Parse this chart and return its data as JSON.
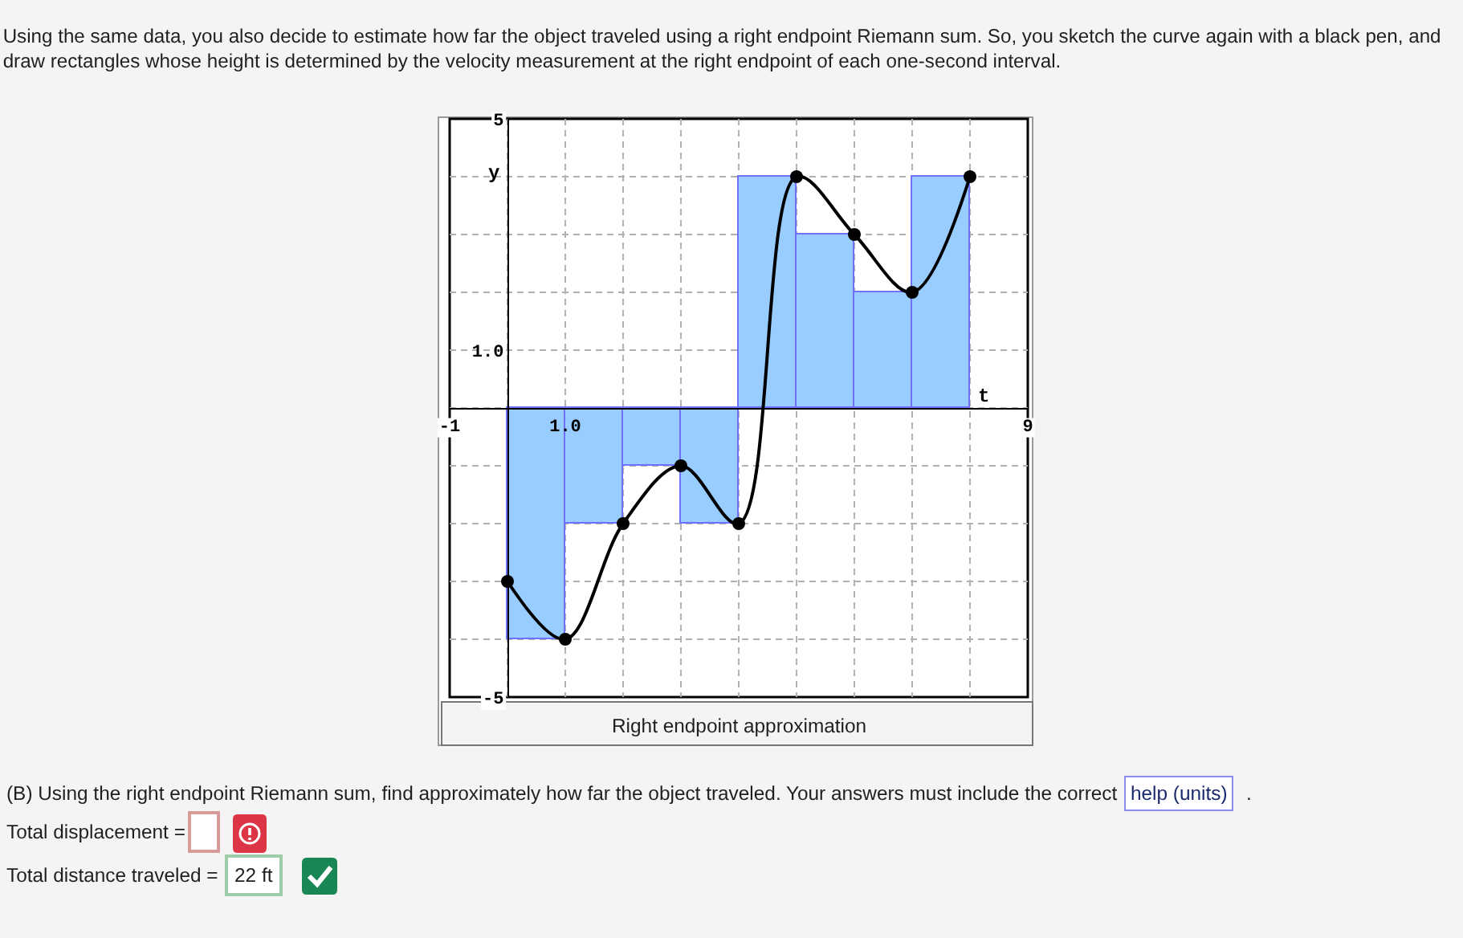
{
  "chart_data": {
    "type": "line",
    "title": "Using the same data, you also decide to estimate how far the object traveled using a right endpoint Riemann sum. So, you sketch the curve again with a black pen, and draw rectangles whose height is determined by the velocity measurement at the right endpoint of each one-second interval.",
    "xlabel": "t",
    "ylabel": "y",
    "xlim": [
      -1,
      9
    ],
    "ylim": [
      -5,
      5
    ],
    "xticks": [
      -1,
      {
        "value": 0,
        "label": null
      },
      {
        "value": 1,
        "label": "1.0"
      },
      {
        "value": 2,
        "label": null
      },
      {
        "value": 3,
        "label": null
      },
      {
        "value": 4,
        "label": null
      },
      {
        "value": 5,
        "label": null
      },
      {
        "value": 6,
        "label": null
      },
      {
        "value": 7,
        "label": null
      },
      {
        "value": 8,
        "label": null
      },
      9
    ],
    "yticks": [
      -5,
      {
        "value": -4,
        "label": null
      },
      {
        "value": -3,
        "label": null
      },
      {
        "value": -2,
        "label": null
      },
      {
        "value": -1,
        "label": null
      },
      {
        "value": 0,
        "label": null
      },
      {
        "value": 1,
        "label": "1.0"
      },
      {
        "value": 2,
        "label": null
      },
      {
        "value": 3,
        "label": null
      },
      {
        "value": 4,
        "label": null
      },
      5
    ],
    "grid": true,
    "marker": "circle",
    "series": [
      {
        "type": "bar",
        "color": "#99ccff",
        "x": [
          0.5,
          1.5,
          2.5,
          3.5,
          4.5,
          5.5,
          6.5,
          7.5
        ],
        "values": [
          -4,
          -2,
          -1,
          -2,
          4,
          3,
          2,
          4
        ]
      },
      {
        "color": "#000000",
        "x": [
          0,
          1,
          2,
          3,
          4,
          5,
          6,
          7,
          8
        ],
        "values": [
          -3,
          -4,
          -2,
          -1,
          -2,
          4,
          3,
          2,
          4
        ]
      }
    ],
    "annotations": [
      "Right endpoint approximation",
      "(B) Using the right endpoint Riemann sum, find approximately how far the object traveled. Your answers must include the correct",
      "help (units)",
      ".",
      "Total displacement =",
      "Total distance traveled =",
      "22 ft"
    ]
  }
}
